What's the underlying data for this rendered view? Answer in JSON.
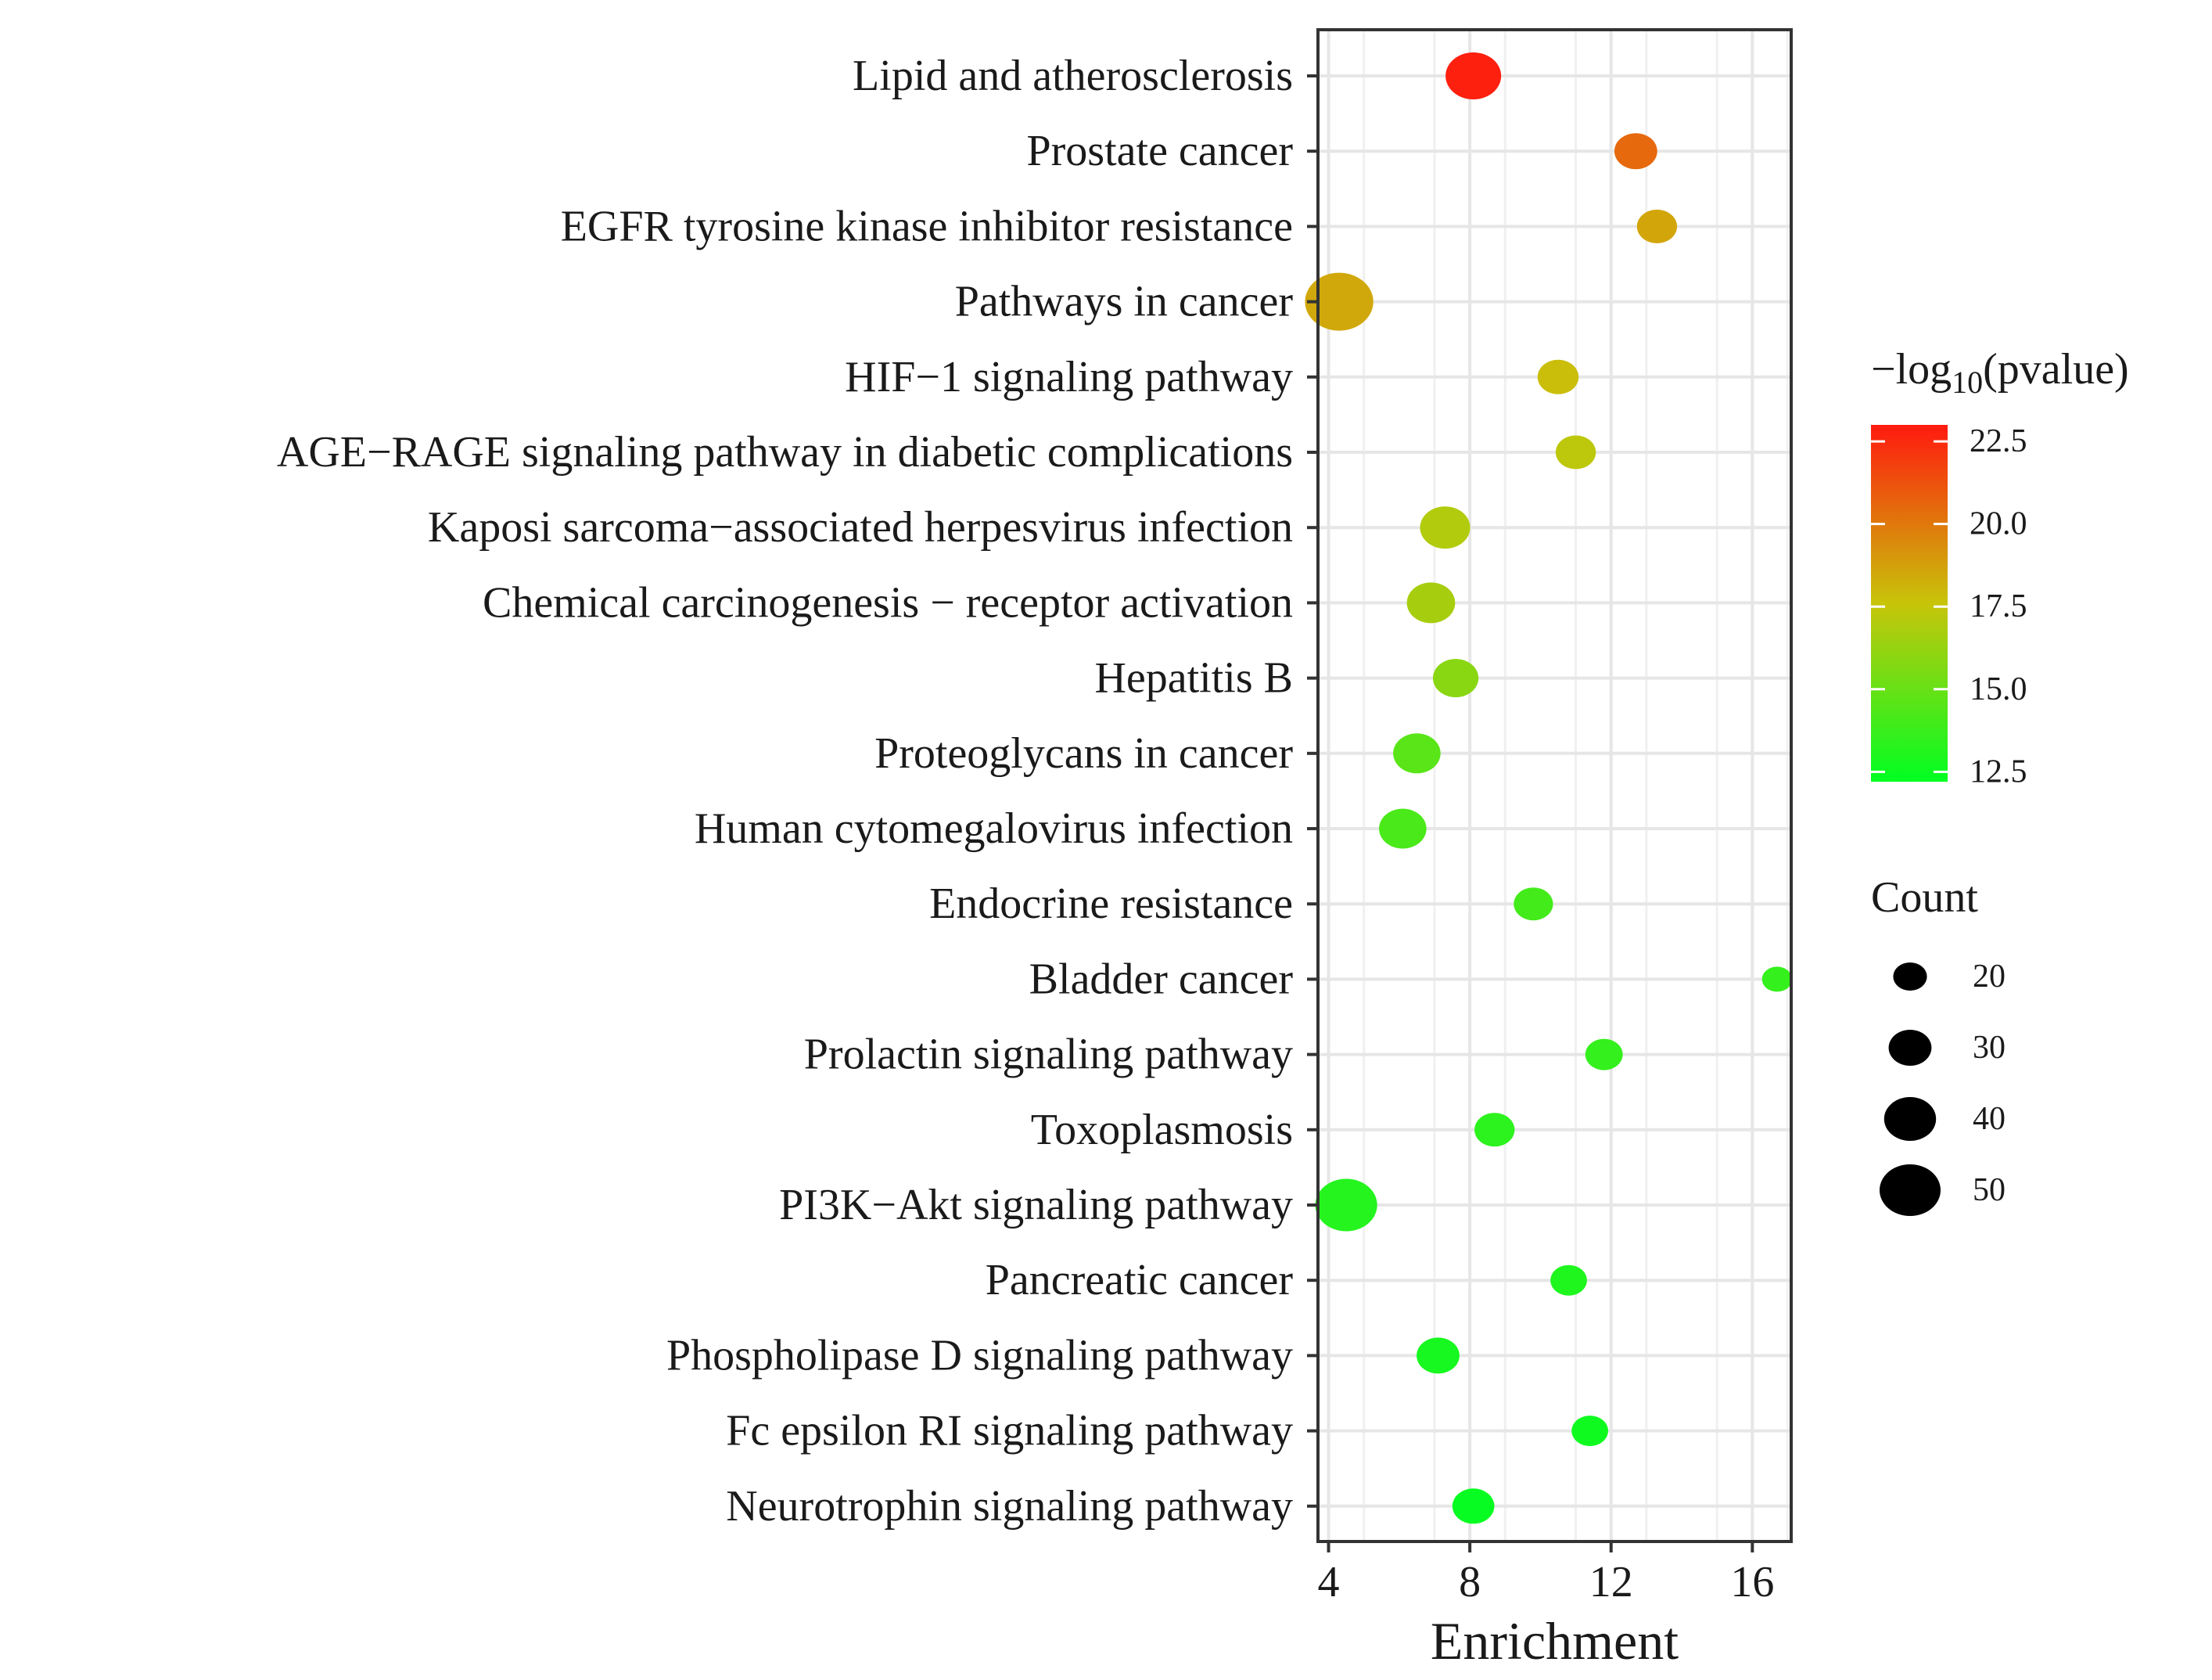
{
  "chart_data": {
    "type": "scatter",
    "xlabel": "Enrichment",
    "ylabel": "",
    "xlim": [
      3.7,
      17.1
    ],
    "x_ticks": [
      "4",
      "8",
      "12",
      "16"
    ],
    "x_tick_values": [
      4,
      8,
      12,
      16
    ],
    "grid": true,
    "legend_position": "right",
    "color_legend": {
      "title_prefix": "−log",
      "title_sub": "10",
      "title_suffix": "(pvalue)",
      "ticks": [
        "22.5",
        "20.0",
        "17.5",
        "15.0",
        "12.5"
      ],
      "tick_values": [
        22.5,
        20.0,
        17.5,
        15.0,
        12.5
      ],
      "range": [
        12.2,
        23.0
      ],
      "low_color": "#00ff22",
      "high_color": "#ff1a0f"
    },
    "size_legend": {
      "title": "Count",
      "labels": [
        "20",
        "30",
        "40",
        "50"
      ],
      "values": [
        20,
        30,
        40,
        50
      ]
    },
    "points": [
      {
        "term": "Lipid and atherosclerosis",
        "enrichment": 8.1,
        "neglog10p": 22.8,
        "count": 44
      },
      {
        "term": "Prostate cancer",
        "enrichment": 12.7,
        "neglog10p": 20.5,
        "count": 30
      },
      {
        "term": "EGFR tyrosine kinase inhibitor resistance",
        "enrichment": 13.3,
        "neglog10p": 18.6,
        "count": 27
      },
      {
        "term": "Pathways in cancer",
        "enrichment": 4.3,
        "neglog10p": 18.5,
        "count": 58
      },
      {
        "term": "HIF−1 signaling pathway",
        "enrichment": 10.5,
        "neglog10p": 17.8,
        "count": 28
      },
      {
        "term": "AGE−RAGE signaling pathway in diabetic complications",
        "enrichment": 11.0,
        "neglog10p": 17.3,
        "count": 27
      },
      {
        "term": "Kaposi sarcoma−associated herpesvirus infection",
        "enrichment": 7.3,
        "neglog10p": 17.0,
        "count": 38
      },
      {
        "term": "Chemical carcinogenesis − receptor activation",
        "enrichment": 6.9,
        "neglog10p": 16.7,
        "count": 36
      },
      {
        "term": "Hepatitis B",
        "enrichment": 7.6,
        "neglog10p": 15.9,
        "count": 33
      },
      {
        "term": "Proteoglycans in cancer",
        "enrichment": 6.5,
        "neglog10p": 14.6,
        "count": 35
      },
      {
        "term": "Human cytomegalovirus infection",
        "enrichment": 6.1,
        "neglog10p": 14.2,
        "count": 35
      },
      {
        "term": "Endocrine resistance",
        "enrichment": 9.8,
        "neglog10p": 14.0,
        "count": 26
      },
      {
        "term": "Bladder cancer",
        "enrichment": 16.7,
        "neglog10p": 13.6,
        "count": 16
      },
      {
        "term": "Prolactin signaling pathway",
        "enrichment": 11.8,
        "neglog10p": 13.6,
        "count": 24
      },
      {
        "term": "Toxoplasmosis",
        "enrichment": 8.7,
        "neglog10p": 13.4,
        "count": 27
      },
      {
        "term": "PI3K−Akt signaling pathway",
        "enrichment": 4.5,
        "neglog10p": 13.2,
        "count": 51
      },
      {
        "term": "Pancreatic cancer",
        "enrichment": 10.8,
        "neglog10p": 13.0,
        "count": 23
      },
      {
        "term": "Phospholipase D signaling pathway",
        "enrichment": 7.1,
        "neglog10p": 12.8,
        "count": 30
      },
      {
        "term": "Fc epsilon RI signaling pathway",
        "enrichment": 11.4,
        "neglog10p": 12.6,
        "count": 23
      },
      {
        "term": "Neurotrophin signaling pathway",
        "enrichment": 8.1,
        "neglog10p": 12.4,
        "count": 29
      }
    ]
  }
}
